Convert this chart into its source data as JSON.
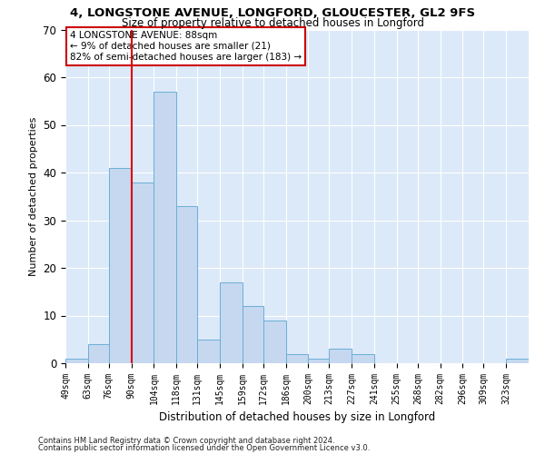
{
  "title1": "4, LONGSTONE AVENUE, LONGFORD, GLOUCESTER, GL2 9FS",
  "title2": "Size of property relative to detached houses in Longford",
  "xlabel": "Distribution of detached houses by size in Longford",
  "ylabel": "Number of detached properties",
  "footnote1": "Contains HM Land Registry data © Crown copyright and database right 2024.",
  "footnote2": "Contains public sector information licensed under the Open Government Licence v3.0.",
  "bin_edges": [
    49,
    63,
    76,
    90,
    104,
    118,
    131,
    145,
    159,
    172,
    186,
    200,
    213,
    227,
    241,
    255,
    268,
    282,
    296,
    309,
    323,
    337
  ],
  "bar_heights": [
    1,
    4,
    41,
    38,
    57,
    33,
    5,
    17,
    12,
    9,
    2,
    1,
    3,
    2,
    0,
    0,
    0,
    0,
    0,
    0,
    1
  ],
  "bar_color": "#c5d8f0",
  "bar_edge_color": "#6baed6",
  "tick_labels": [
    "49sqm",
    "63sqm",
    "76sqm",
    "90sqm",
    "104sqm",
    "118sqm",
    "131sqm",
    "145sqm",
    "159sqm",
    "172sqm",
    "186sqm",
    "200sqm",
    "213sqm",
    "227sqm",
    "241sqm",
    "255sqm",
    "268sqm",
    "282sqm",
    "296sqm",
    "309sqm",
    "323sqm"
  ],
  "vline_x": 90,
  "vline_color": "#dd0000",
  "annotation_title": "4 LONGSTONE AVENUE: 88sqm",
  "annotation_line1": "← 9% of detached houses are smaller (21)",
  "annotation_line2": "82% of semi-detached houses are larger (183) →",
  "annotation_box_edge_color": "#cc0000",
  "ylim": [
    0,
    70
  ],
  "yticks": [
    0,
    10,
    20,
    30,
    40,
    50,
    60,
    70
  ],
  "bg_color": "#dce9f8",
  "grid_color": "#ffffff",
  "title1_fontsize": 9.5,
  "title2_fontsize": 8.5,
  "ylabel_fontsize": 8,
  "xlabel_fontsize": 8.5,
  "tick_fontsize": 7,
  "annotation_fontsize": 7.5,
  "footnote_fontsize": 6
}
